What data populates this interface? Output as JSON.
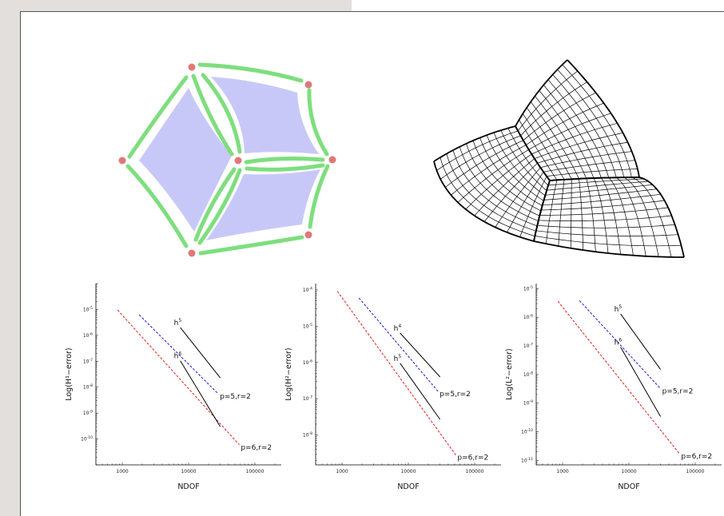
{
  "figure": {
    "mesh_colors": {
      "patch": "#c8c8f8",
      "edge": "#7ede7e",
      "vertex": "#e07878",
      "grid": "#000000"
    }
  },
  "chart_data": [
    {
      "type": "line",
      "xscale": "log",
      "yscale": "log",
      "xlabel": "NDOF",
      "ylabel": "Log(H¹−error)",
      "xlim": [
        400,
        250000
      ],
      "ylim": [
        1e-11,
        0.0001
      ],
      "xticks": [
        {
          "v": 1000,
          "label": "1000"
        },
        {
          "v": 10000,
          "label": "10000"
        },
        {
          "v": 100000,
          "label": "100000"
        }
      ],
      "yticks": [
        {
          "v": 1e-05,
          "m": "10",
          "e": "-5"
        },
        {
          "v": 1e-06,
          "m": "10",
          "e": "-6"
        },
        {
          "v": 1e-07,
          "m": "10",
          "e": "-7"
        },
        {
          "v": 1e-08,
          "m": "10",
          "e": "-8"
        },
        {
          "v": 1e-09,
          "m": "10",
          "e": "-9"
        },
        {
          "v": 1e-10,
          "m": "10",
          "e": "-10"
        }
      ],
      "series": [
        {
          "name": "p=5,r=2",
          "color": "#2a2ad0",
          "dash": true,
          "x": [
            1800,
            28000
          ],
          "y": [
            6.2e-06,
            5.5e-09
          ]
        },
        {
          "name": "p=6,r=2",
          "color": "#e03030",
          "dash": true,
          "x": [
            850,
            58000
          ],
          "y": [
            9.5e-06,
            6e-11
          ]
        }
      ],
      "slopes": [
        {
          "label": "h",
          "exp": "5",
          "x": [
            7500,
            30000
          ],
          "y": [
            2e-06,
            2.3e-08
          ]
        },
        {
          "label": "h",
          "exp": "6",
          "x": [
            7500,
            30000
          ],
          "y": [
            1.05e-07,
            3e-10
          ]
        }
      ]
    },
    {
      "type": "line",
      "xscale": "log",
      "yscale": "log",
      "xlabel": "NDOF",
      "ylabel": "Log(H²−error)",
      "xlim": [
        400,
        250000
      ],
      "ylim": [
        1.5e-09,
        0.00015
      ],
      "xticks": [
        {
          "v": 1000,
          "label": "1000"
        },
        {
          "v": 10000,
          "label": "10000"
        },
        {
          "v": 100000,
          "label": "100000"
        }
      ],
      "yticks": [
        {
          "v": 0.0001,
          "m": "10",
          "e": "-4"
        },
        {
          "v": 1e-05,
          "m": "10",
          "e": "-5"
        },
        {
          "v": 1e-06,
          "m": "10",
          "e": "-6"
        },
        {
          "v": 1e-07,
          "m": "10",
          "e": "-7"
        },
        {
          "v": 1e-08,
          "m": "10",
          "e": "-8"
        }
      ],
      "series": [
        {
          "name": "p=5,r=2",
          "color": "#2a2ad0",
          "dash": true,
          "x": [
            1800,
            28000
          ],
          "y": [
            6e-05,
            1.6e-07
          ]
        },
        {
          "name": "p=6,r=2",
          "color": "#e03030",
          "dash": true,
          "x": [
            850,
            52000
          ],
          "y": [
            9.2e-05,
            2.8e-09
          ]
        }
      ],
      "slopes": [
        {
          "label": "h",
          "exp": "4",
          "x": [
            7500,
            30000
          ],
          "y": [
            6.5e-06,
            4e-07
          ]
        },
        {
          "label": "h",
          "exp": "5",
          "x": [
            7500,
            30000
          ],
          "y": [
            9.5e-07,
            2.7e-08
          ]
        }
      ]
    },
    {
      "type": "line",
      "xscale": "log",
      "yscale": "log",
      "xlabel": "NDOF",
      "ylabel": "Log(L²−error)",
      "xlim": [
        400,
        250000
      ],
      "ylim": [
        7e-12,
        1.5e-05
      ],
      "xticks": [
        {
          "v": 1000,
          "label": "1000"
        },
        {
          "v": 10000,
          "label": "10000"
        },
        {
          "v": 100000,
          "label": "100000"
        }
      ],
      "yticks": [
        {
          "v": 1e-05,
          "m": "10",
          "e": "-5"
        },
        {
          "v": 1e-06,
          "m": "10",
          "e": "-6"
        },
        {
          "v": 1e-07,
          "m": "10",
          "e": "-7"
        },
        {
          "v": 1e-08,
          "m": "10",
          "e": "-8"
        },
        {
          "v": 1e-09,
          "m": "10",
          "e": "-9"
        },
        {
          "v": 1e-10,
          "m": "10",
          "e": "-10"
        },
        {
          "v": 1e-11,
          "m": "10",
          "e": "-11"
        }
      ],
      "series": [
        {
          "name": "p=5,r=2",
          "color": "#2a2ad0",
          "dash": true,
          "x": [
            1800,
            30000
          ],
          "y": [
            3.8e-06,
            3.2e-09
          ]
        },
        {
          "name": "p=6,r=2",
          "color": "#e03030",
          "dash": true,
          "x": [
            850,
            58000
          ],
          "y": [
            3.6e-06,
            1.7e-11
          ]
        }
      ],
      "slopes": [
        {
          "label": "h",
          "exp": "5",
          "x": [
            7500,
            30000
          ],
          "y": [
            1.3e-06,
            1.5e-08
          ]
        },
        {
          "label": "h",
          "exp": "6",
          "x": [
            7500,
            30000
          ],
          "y": [
            9e-08,
            3.4e-10
          ]
        }
      ]
    }
  ]
}
